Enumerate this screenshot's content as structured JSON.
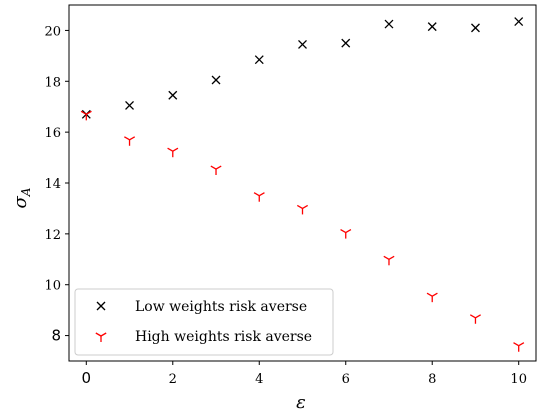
{
  "chart_data": {
    "type": "scatter",
    "xlabel": "ε",
    "ylabel": "σ",
    "ylabel_sub": "A",
    "xlim": [
      -0.4,
      10.4
    ],
    "ylim": [
      7.0,
      21.0
    ],
    "grid": false,
    "legend_position": "lower-left",
    "x_ticks": [
      {
        "value": 0,
        "label": "0"
      },
      {
        "value": 2,
        "label": "2"
      },
      {
        "value": 4,
        "label": "4"
      },
      {
        "value": 6,
        "label": "6"
      },
      {
        "value": 8,
        "label": "8"
      },
      {
        "value": 10,
        "label": "10"
      }
    ],
    "y_ticks": [
      {
        "value": 8,
        "label": "8"
      },
      {
        "value": 10,
        "label": "10"
      },
      {
        "value": 12,
        "label": "12"
      },
      {
        "value": 14,
        "label": "14"
      },
      {
        "value": 16,
        "label": "16"
      },
      {
        "value": 18,
        "label": "18"
      },
      {
        "value": 20,
        "label": "20"
      }
    ],
    "series": [
      {
        "name": "Low weights risk averse",
        "marker": "x",
        "color": "#000000",
        "x": [
          0,
          1,
          2,
          3,
          4,
          5,
          6,
          7,
          8,
          9,
          10
        ],
        "y": [
          16.7,
          17.05,
          17.45,
          18.05,
          18.85,
          19.45,
          19.5,
          20.25,
          20.15,
          20.1,
          20.35
        ]
      },
      {
        "name": "High weights risk averse",
        "marker": "tri_down",
        "color": "#ff0000",
        "x": [
          0,
          1,
          2,
          3,
          4,
          5,
          6,
          7,
          8,
          9,
          10
        ],
        "y": [
          16.7,
          15.7,
          15.25,
          14.55,
          13.5,
          13.0,
          12.05,
          11.0,
          9.55,
          8.7,
          7.6
        ]
      }
    ]
  }
}
